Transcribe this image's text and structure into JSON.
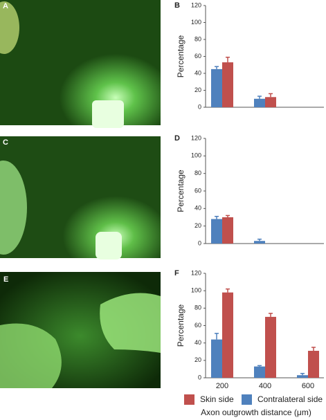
{
  "image_labels": [
    "A",
    "C",
    "E"
  ],
  "chart_data": [
    {
      "type": "bar",
      "panel": "B",
      "ylabel": "Percentage",
      "categories": [
        null,
        null,
        null
      ],
      "series": [
        {
          "color": "#4f81bd",
          "values": [
            45,
            10,
            null
          ],
          "errors": [
            3,
            3,
            null
          ]
        },
        {
          "color": "#c0504d",
          "values": [
            53,
            12,
            null
          ],
          "errors": [
            6,
            4,
            null
          ]
        }
      ],
      "ylim": [
        0,
        120
      ],
      "yticks": [
        0,
        20,
        40,
        60,
        80,
        100,
        120
      ],
      "grid": false
    },
    {
      "type": "bar",
      "panel": "D",
      "ylabel": "Percentage",
      "categories": [
        null,
        null,
        null
      ],
      "series": [
        {
          "color": "#4f81bd",
          "values": [
            28,
            3,
            null
          ],
          "errors": [
            3,
            2,
            null
          ]
        },
        {
          "color": "#c0504d",
          "values": [
            30,
            null,
            null
          ],
          "errors": [
            2,
            null,
            null
          ]
        }
      ],
      "ylim": [
        0,
        120
      ],
      "yticks": [
        0,
        20,
        40,
        60,
        80,
        100,
        120
      ],
      "grid": false
    },
    {
      "type": "bar",
      "panel": "F",
      "ylabel": "Percentage",
      "xlabel": "Axon outgrowth distance (μm)",
      "categories": [
        "200",
        "400",
        "600"
      ],
      "series": [
        {
          "name": "Contralateral side",
          "color": "#4f81bd",
          "values": [
            44,
            13,
            3
          ],
          "errors": [
            7,
            1,
            2
          ]
        },
        {
          "name": "Skin side",
          "color": "#c0504d",
          "values": [
            98,
            70,
            31
          ],
          "errors": [
            4,
            4,
            4
          ]
        }
      ],
      "ylim": [
        0,
        120
      ],
      "yticks": [
        0,
        20,
        40,
        60,
        80,
        100,
        120
      ],
      "grid": false,
      "legend": "bottom"
    }
  ]
}
